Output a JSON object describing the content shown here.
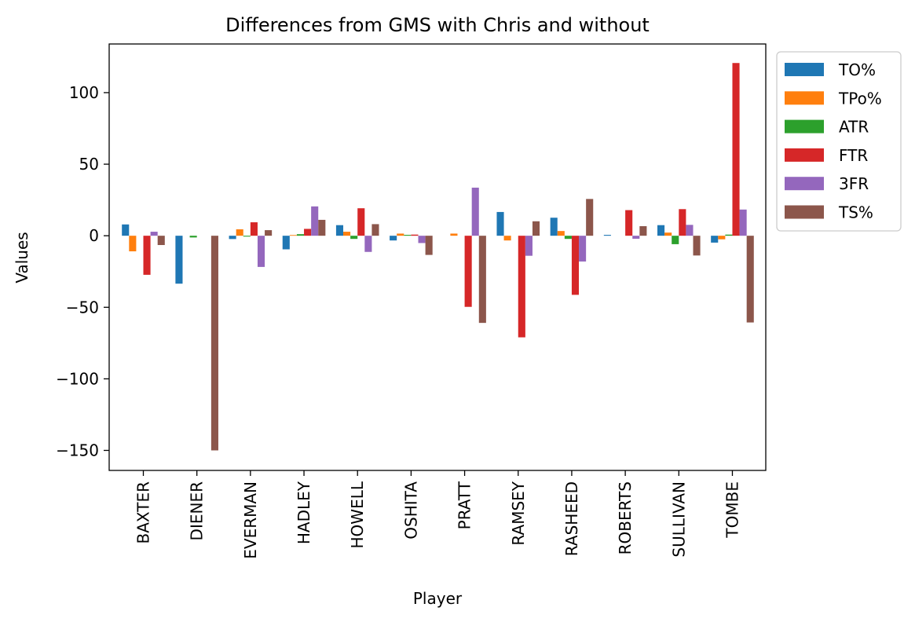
{
  "chart_data": {
    "type": "bar",
    "title": "Differences from GMS with Chris and without",
    "xlabel": "Player",
    "ylabel": "Values",
    "ylim": [
      -164,
      134
    ],
    "yticks": [
      100,
      50,
      0,
      -50,
      -100,
      -150
    ],
    "ytick_labels": [
      "100",
      "50",
      "0",
      "−50",
      "−100",
      "−150"
    ],
    "legend_position": "outside-top-right",
    "grid": false,
    "categories": [
      "BAXTER",
      "DIENER",
      "EVERMAN",
      "HADLEY",
      "HOWELL",
      "OSHITA",
      "PRATT",
      "RAMSEY",
      "RASHEED",
      "ROBERTS",
      "SULLIVAN",
      "TOMBE"
    ],
    "series": [
      {
        "name": "TO%",
        "color": "#1f77b4",
        "values": [
          7.9,
          -33.5,
          -2.3,
          -9.5,
          7.4,
          -3.3,
          0,
          16.6,
          12.6,
          0.6,
          7.4,
          -4.8
        ]
      },
      {
        "name": "TPo%",
        "color": "#ff7f0e",
        "values": [
          -10.9,
          0,
          4.5,
          0.5,
          2.8,
          1.5,
          1.5,
          -3.3,
          3.3,
          0,
          2.2,
          -2.5
        ]
      },
      {
        "name": "ATR",
        "color": "#2ca02c",
        "values": [
          0,
          -1.2,
          -0.6,
          1.1,
          -2.2,
          0.6,
          0,
          0,
          -2.2,
          0,
          -5.9,
          0.8
        ]
      },
      {
        "name": "FTR",
        "color": "#d62728",
        "values": [
          -27.3,
          0,
          9.4,
          4.8,
          19.2,
          0.8,
          -49.7,
          -71.0,
          -41.3,
          17.9,
          18.6,
          120.7
        ]
      },
      {
        "name": "3FR",
        "color": "#9467bd",
        "values": [
          2.8,
          0,
          -21.8,
          20.5,
          -11.3,
          -5.1,
          33.6,
          -14.0,
          -18.0,
          -2.1,
          7.6,
          18.3
        ]
      },
      {
        "name": "TS%",
        "color": "#8c564b",
        "values": [
          -6.5,
          -150.0,
          3.9,
          11.1,
          8.1,
          -13.4,
          -60.9,
          10.1,
          25.7,
          6.7,
          -13.8,
          -60.6
        ]
      }
    ]
  }
}
